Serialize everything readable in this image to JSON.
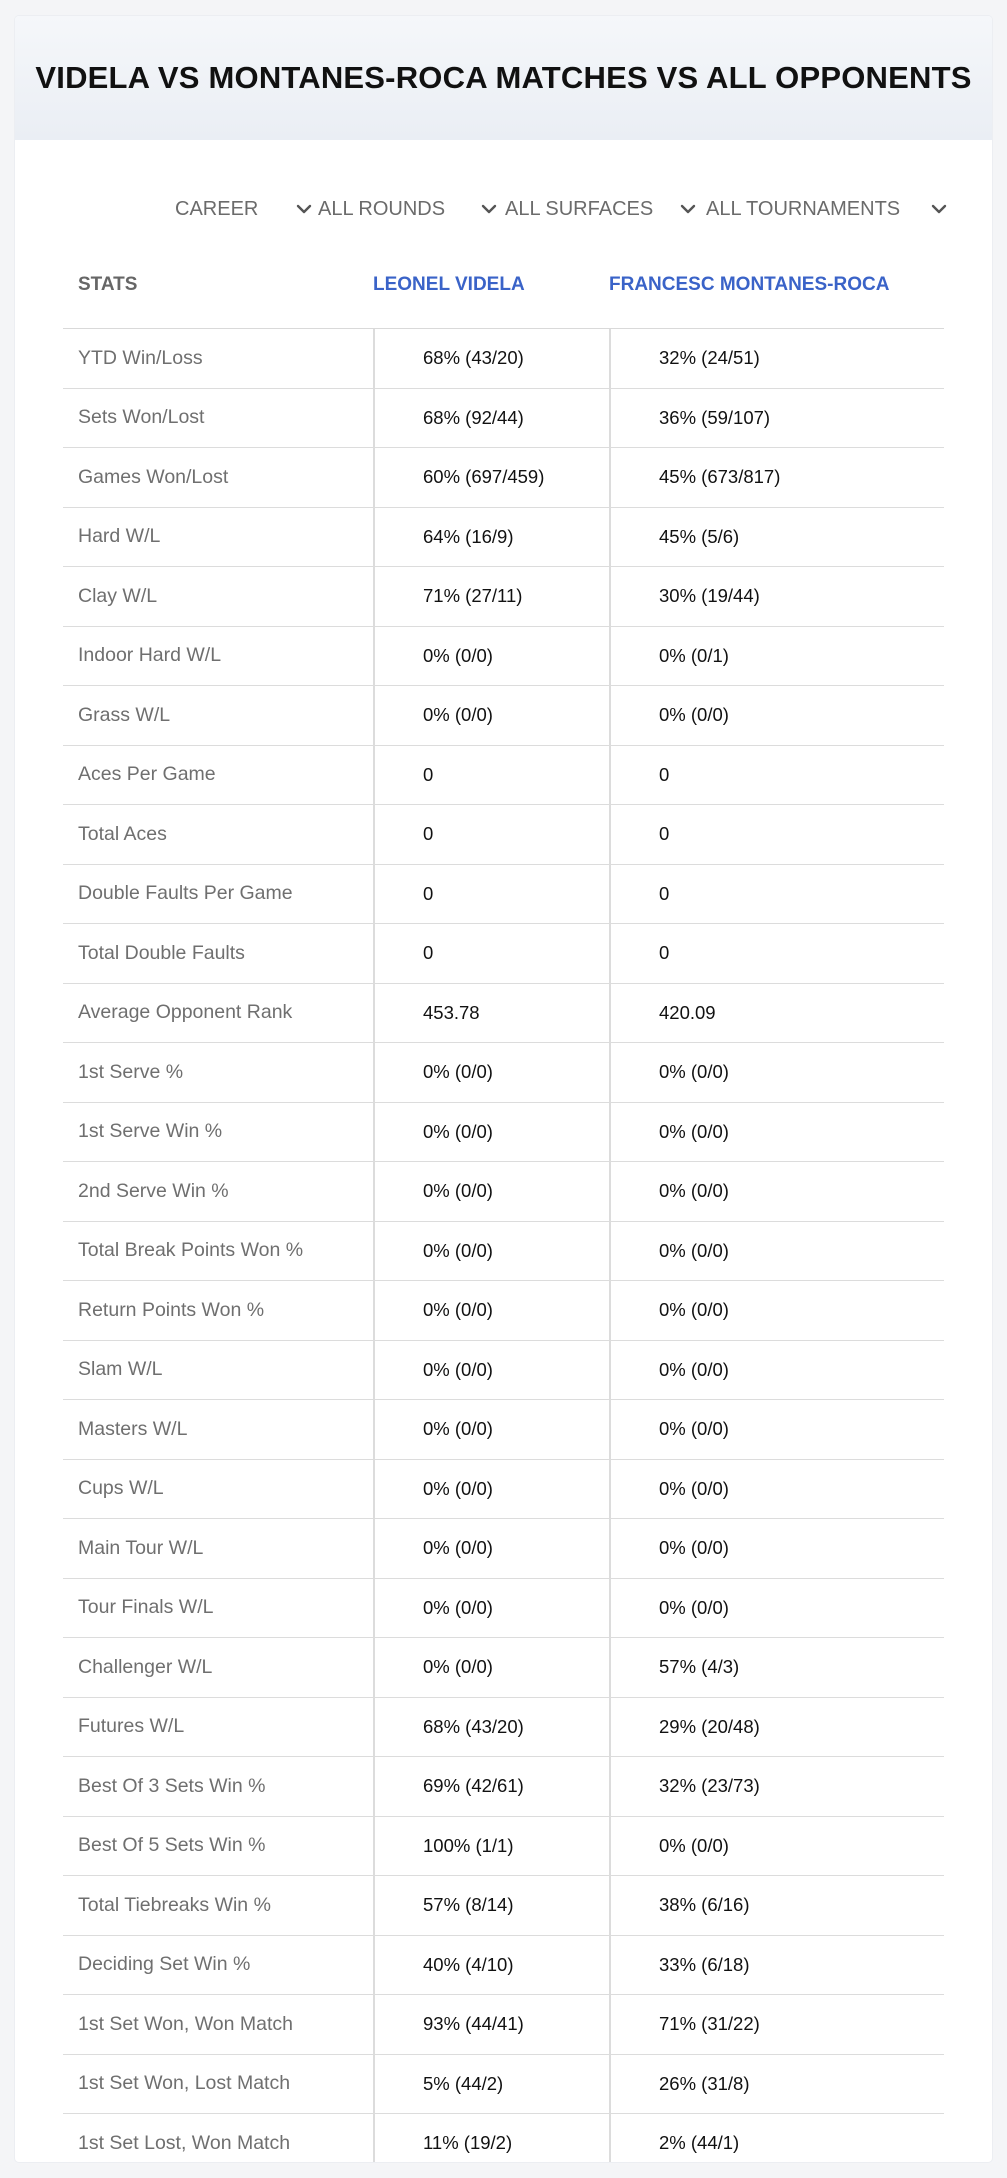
{
  "title": "VIDELA VS MONTANES-ROCA MATCHES VS ALL OPPONENTS",
  "filters": [
    {
      "value": "CAREER",
      "icon": "chevron-down-icon"
    },
    {
      "value": "ALL ROUNDS",
      "icon": "chevron-down-icon"
    },
    {
      "value": "ALL SURFACES",
      "icon": "chevron-down-icon"
    },
    {
      "value": "ALL TOURNAMENTS",
      "icon": "chevron-down-icon"
    }
  ],
  "table": {
    "headers": {
      "stats": "STATS",
      "player1": "LEONEL VIDELA",
      "player2": "FRANCESC MONTANES-ROCA"
    },
    "rows": [
      {
        "stat": "YTD Win/Loss",
        "p1": "68% (43/20)",
        "p2": "32% (24/51)"
      },
      {
        "stat": "Sets Won/Lost",
        "p1": "68% (92/44)",
        "p2": "36% (59/107)"
      },
      {
        "stat": "Games Won/Lost",
        "p1": "60% (697/459)",
        "p2": "45% (673/817)"
      },
      {
        "stat": "Hard W/L",
        "p1": "64% (16/9)",
        "p2": "45% (5/6)"
      },
      {
        "stat": "Clay W/L",
        "p1": "71% (27/11)",
        "p2": "30% (19/44)"
      },
      {
        "stat": "Indoor Hard W/L",
        "p1": "0% (0/0)",
        "p2": "0% (0/1)"
      },
      {
        "stat": "Grass W/L",
        "p1": "0% (0/0)",
        "p2": "0% (0/0)"
      },
      {
        "stat": "Aces Per Game",
        "p1": "0",
        "p2": "0"
      },
      {
        "stat": "Total Aces",
        "p1": "0",
        "p2": "0"
      },
      {
        "stat": "Double Faults Per Game",
        "p1": "0",
        "p2": "0"
      },
      {
        "stat": "Total Double Faults",
        "p1": "0",
        "p2": "0"
      },
      {
        "stat": "Average Opponent Rank",
        "p1": "453.78",
        "p2": "420.09"
      },
      {
        "stat": "1st Serve %",
        "p1": "0% (0/0)",
        "p2": "0% (0/0)"
      },
      {
        "stat": "1st Serve Win %",
        "p1": "0% (0/0)",
        "p2": "0% (0/0)"
      },
      {
        "stat": "2nd Serve Win %",
        "p1": "0% (0/0)",
        "p2": "0% (0/0)"
      },
      {
        "stat": "Total Break Points Won %",
        "p1": "0% (0/0)",
        "p2": "0% (0/0)"
      },
      {
        "stat": "Return Points Won %",
        "p1": "0% (0/0)",
        "p2": "0% (0/0)"
      },
      {
        "stat": "Slam W/L",
        "p1": "0% (0/0)",
        "p2": "0% (0/0)"
      },
      {
        "stat": "Masters W/L",
        "p1": "0% (0/0)",
        "p2": "0% (0/0)"
      },
      {
        "stat": "Cups W/L",
        "p1": "0% (0/0)",
        "p2": "0% (0/0)"
      },
      {
        "stat": "Main Tour W/L",
        "p1": "0% (0/0)",
        "p2": "0% (0/0)"
      },
      {
        "stat": "Tour Finals W/L",
        "p1": "0% (0/0)",
        "p2": "0% (0/0)"
      },
      {
        "stat": "Challenger W/L",
        "p1": "0% (0/0)",
        "p2": "57% (4/3)"
      },
      {
        "stat": "Futures W/L",
        "p1": "68% (43/20)",
        "p2": "29% (20/48)"
      },
      {
        "stat": "Best Of 3 Sets Win %",
        "p1": "69% (42/61)",
        "p2": "32% (23/73)"
      },
      {
        "stat": "Best Of 5 Sets Win %",
        "p1": "100% (1/1)",
        "p2": "0% (0/0)"
      },
      {
        "stat": "Total Tiebreaks Win %",
        "p1": "57% (8/14)",
        "p2": "38% (6/16)"
      },
      {
        "stat": "Deciding Set Win %",
        "p1": "40% (4/10)",
        "p2": "33% (6/18)"
      },
      {
        "stat": "1st Set Won, Won Match",
        "p1": "93% (44/41)",
        "p2": "71% (31/22)"
      },
      {
        "stat": "1st Set Won, Lost Match",
        "p1": "5% (44/2)",
        "p2": "26% (31/8)"
      },
      {
        "stat": "1st Set Lost, Won Match",
        "p1": "11% (19/2)",
        "p2": "2% (44/1)"
      }
    ]
  },
  "colors": {
    "player_header": "#3a63c8",
    "stat_label": "#6f6f6f",
    "value_text": "#111111",
    "header_bg": "#eef1f5"
  }
}
